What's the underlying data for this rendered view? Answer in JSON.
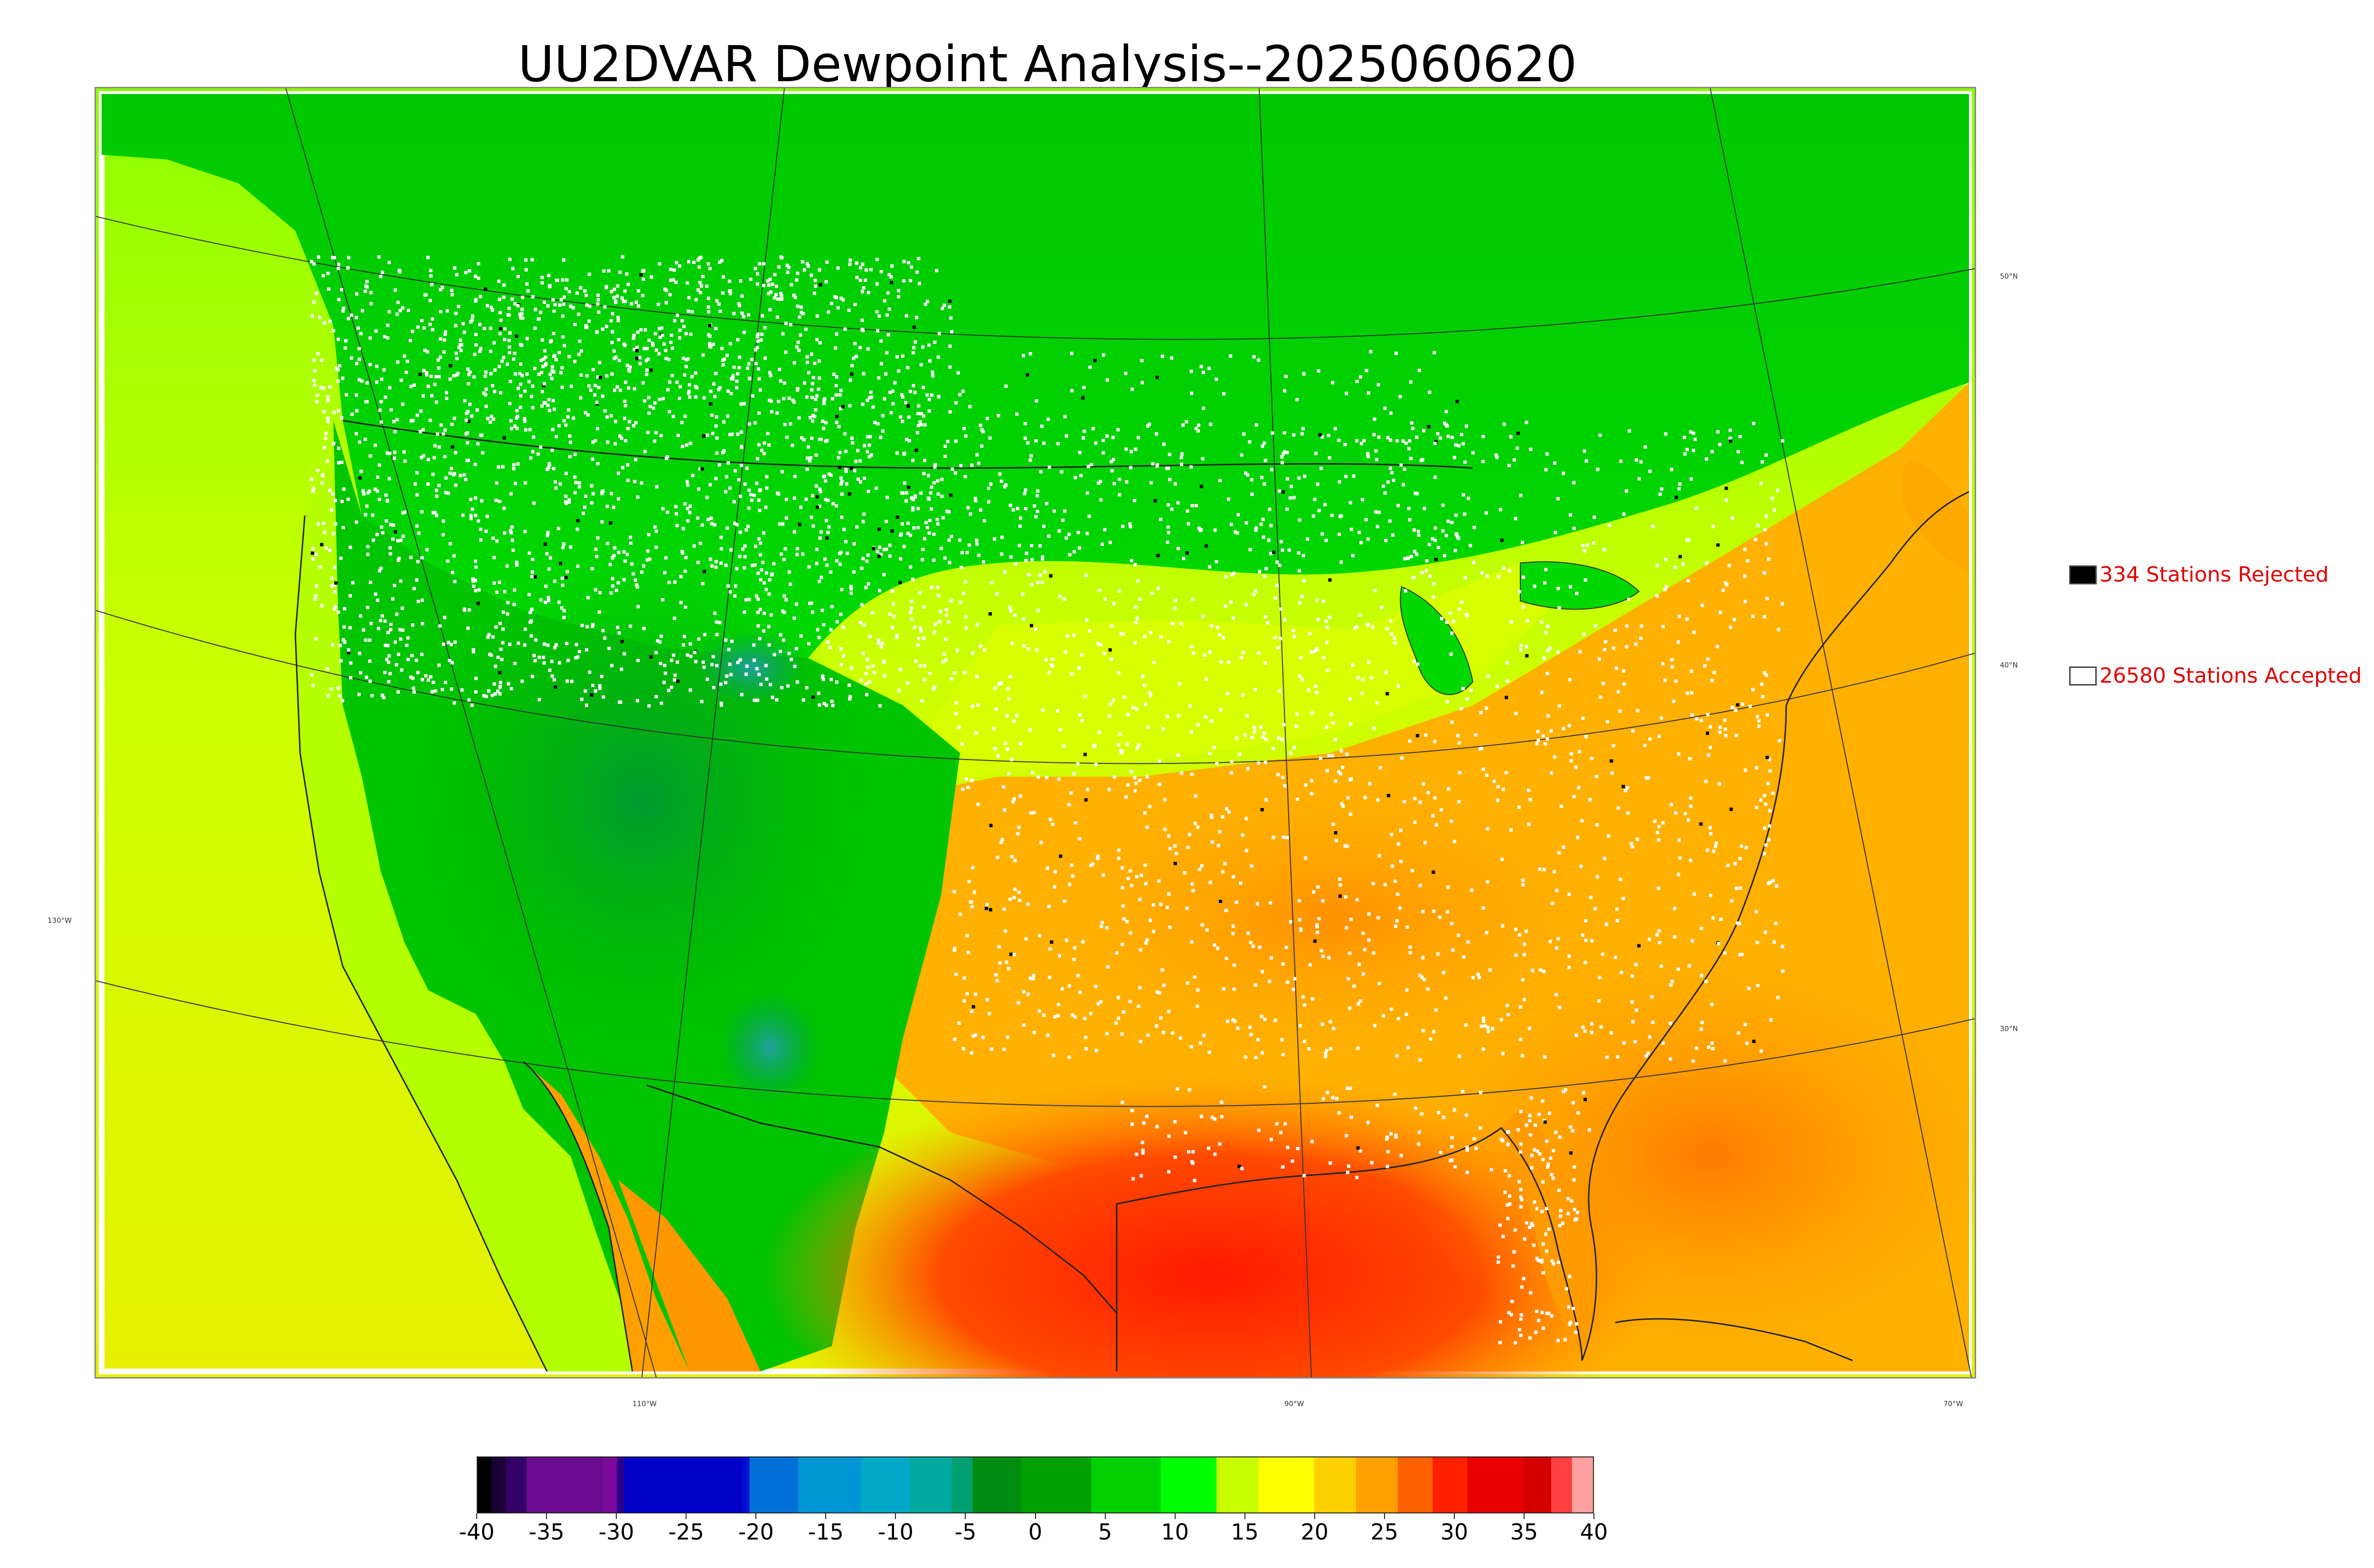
{
  "title": "UU2DVAR Dewpoint Analysis--2025060620",
  "legend": {
    "rejected": {
      "count": 334,
      "label": "334 Stations Rejected",
      "color": "#000000"
    },
    "accepted": {
      "count": 26580,
      "label": "26580 Stations Accepted",
      "color": "#ffffff"
    }
  },
  "grid_labels": {
    "lat": [
      "50°N",
      "40°N",
      "30°N"
    ],
    "lon_side": "130°W",
    "lon_bottom": [
      "110°W",
      "90°W",
      "70°W"
    ]
  },
  "colorbar": {
    "ticks": [
      "-40",
      "-35",
      "-30",
      "-25",
      "-20",
      "-15",
      "-10",
      "-5",
      "0",
      "5",
      "10",
      "15",
      "20",
      "25",
      "30",
      "35",
      "40"
    ],
    "min": -40,
    "max": 40,
    "stops": [
      [
        "#000000",
        -40
      ],
      [
        "#1a0033",
        -39
      ],
      [
        "#330066",
        -38
      ],
      [
        "#6a0b8f",
        -36.5
      ],
      [
        "#7a0a9a",
        -31
      ],
      [
        "#2a008c",
        -30
      ],
      [
        "#0000c8",
        -29.5
      ],
      [
        "#0010d0",
        -21
      ],
      [
        "#0070d8",
        -20.5
      ],
      [
        "#0096d6",
        -17
      ],
      [
        "#00a8c8",
        -12.5
      ],
      [
        "#00aaa0",
        -9
      ],
      [
        "#00a070",
        -6
      ],
      [
        "#008c10",
        -4.5
      ],
      [
        "#00a000",
        -1
      ],
      [
        "#00d000",
        4
      ],
      [
        "#00ff00",
        9
      ],
      [
        "#c8ff00",
        13
      ],
      [
        "#ffff00",
        16
      ],
      [
        "#ffd000",
        20
      ],
      [
        "#ffa000",
        23
      ],
      [
        "#ff6000",
        26
      ],
      [
        "#ff2000",
        28.5
      ],
      [
        "#e80000",
        31
      ],
      [
        "#d40000",
        35
      ],
      [
        "#ff4040",
        37
      ],
      [
        "#ffa0a0",
        38.5
      ],
      [
        "#c8c8c8",
        40
      ]
    ]
  },
  "colors": {
    "green_north": "#00cc00",
    "green_rockies": "#009900",
    "yellow": "#ccff00",
    "orange": "#ffb000",
    "red_gulf": "#ff3000",
    "station": "#ffffff",
    "rejected_station": "#000000"
  }
}
